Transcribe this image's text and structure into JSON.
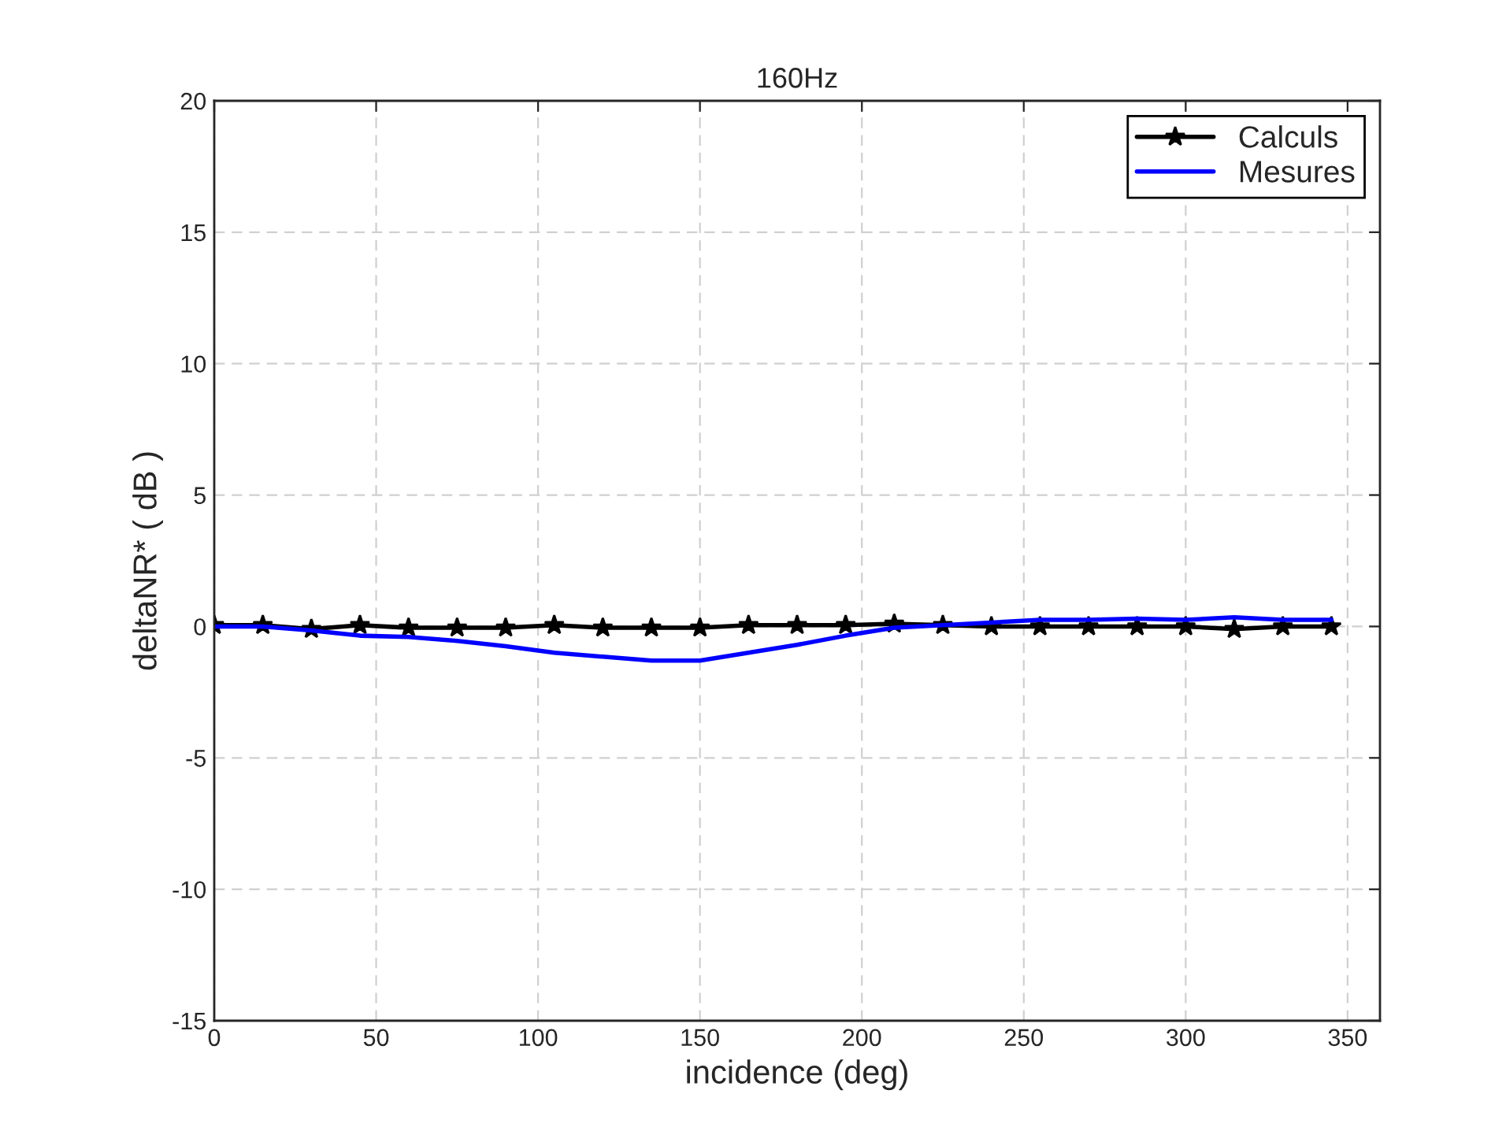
{
  "chart_data": {
    "type": "line",
    "title": "160Hz",
    "xlabel": "incidence (deg)",
    "ylabel": "deltaNR* ( dB )",
    "x": [
      0,
      15,
      30,
      45,
      60,
      75,
      90,
      105,
      120,
      135,
      150,
      165,
      180,
      195,
      210,
      225,
      240,
      255,
      270,
      285,
      300,
      315,
      330,
      345
    ],
    "series": [
      {
        "name": "Calculs",
        "color": "#000000",
        "marker": "star",
        "values": [
          0.05,
          0.05,
          -0.1,
          0.05,
          -0.05,
          -0.05,
          -0.05,
          0.05,
          -0.05,
          -0.05,
          -0.05,
          0.05,
          0.05,
          0.05,
          0.1,
          0.05,
          0,
          0,
          0,
          0,
          0,
          -0.1,
          0,
          0
        ]
      },
      {
        "name": "Mesures",
        "color": "#0000ff",
        "marker": "none",
        "values": [
          0,
          0,
          -0.15,
          -0.35,
          -0.4,
          -0.55,
          -0.75,
          -1.0,
          -1.15,
          -1.3,
          -1.3,
          -1.0,
          -0.7,
          -0.35,
          -0.05,
          0.05,
          0.15,
          0.25,
          0.25,
          0.3,
          0.25,
          0.35,
          0.25,
          0.25
        ]
      }
    ],
    "xlim": [
      0,
      360
    ],
    "xticks": [
      0,
      50,
      100,
      150,
      200,
      250,
      300,
      350
    ],
    "ylim": [
      -15,
      20
    ],
    "yticks": [
      -15,
      -10,
      -5,
      0,
      5,
      10,
      15,
      20
    ],
    "grid": true,
    "legend": "top right"
  }
}
